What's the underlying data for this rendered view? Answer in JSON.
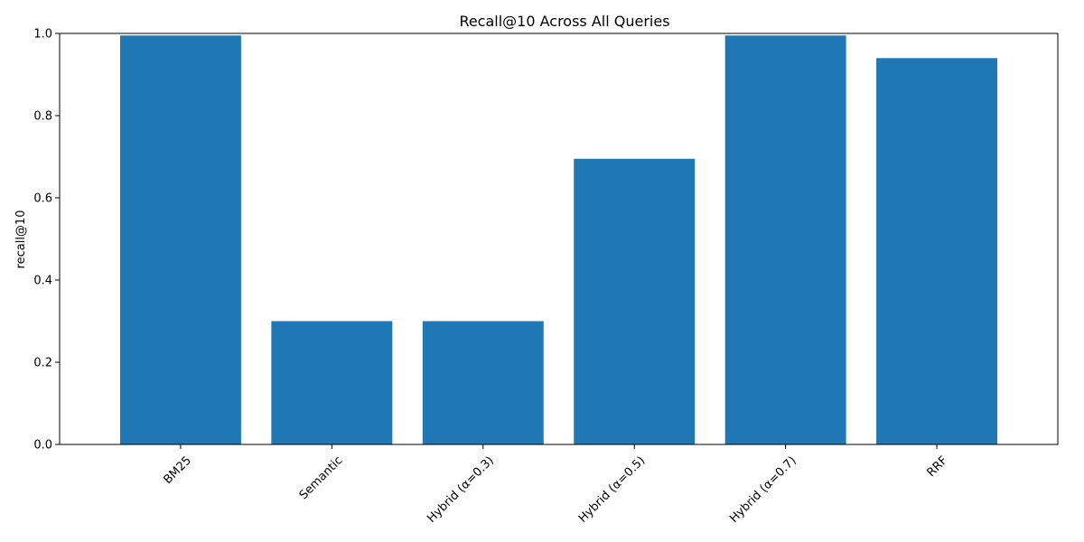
{
  "chart_data": {
    "type": "bar",
    "title": "Recall@10 Across All Queries",
    "xlabel": "",
    "ylabel": "recall@10",
    "categories": [
      "BM25",
      "Semantic",
      "Hybrid (α=0.3)",
      "Hybrid (α=0.5)",
      "Hybrid (α=0.7)",
      "RRF"
    ],
    "values": [
      0.995,
      0.3,
      0.3,
      0.695,
      0.995,
      0.94
    ],
    "ylim": [
      0,
      1.0
    ],
    "yticks": [
      0.0,
      0.2,
      0.4,
      0.6,
      0.8,
      1.0
    ],
    "ytick_labels": [
      "0.0",
      "0.2",
      "0.4",
      "0.6",
      "0.8",
      "1.0"
    ],
    "bar_color": "#1f77b4",
    "grid": false,
    "legend": "none",
    "xtick_rotation_deg": 45
  }
}
